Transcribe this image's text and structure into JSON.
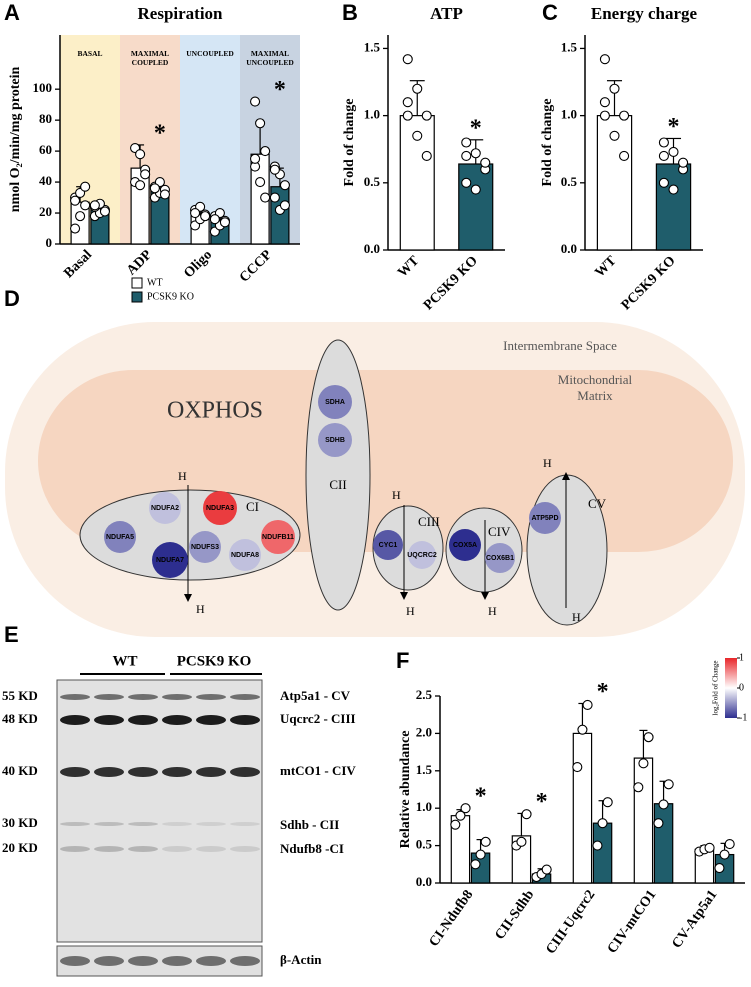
{
  "panel_labels": [
    "A",
    "B",
    "C",
    "D",
    "E",
    "F"
  ],
  "chart_data": [
    {
      "type": "bar",
      "title": "Respiration",
      "y_label": "nmol O₂/min/mg protein",
      "categories": [
        "Basal",
        "ADP",
        "Oligo",
        "CCCP"
      ],
      "regions": [
        {
          "label": "BASAL",
          "category": "Basal",
          "color": "#fcefc8"
        },
        {
          "label": "MAXIMAL COUPLED",
          "category": "ADP",
          "color": "#f7dbc9"
        },
        {
          "label": "UNCOUPLED",
          "category": "Oligo",
          "color": "#d5e6f5"
        },
        {
          "label": "MAXIMAL UNCOUPLED",
          "category": "CCCP",
          "color": "#c8d3e1"
        }
      ],
      "series": [
        {
          "name": "WT",
          "color": "#ffffff",
          "values": [
            27,
            49,
            19,
            58
          ],
          "errors": [
            10,
            15,
            5,
            21
          ],
          "points": [
            [
              10,
              18,
              25,
              30,
              33,
              37,
              28
            ],
            [
              62,
              58,
              48,
              40,
              38,
              45
            ],
            [
              12,
              16,
              19,
              22,
              24,
              18,
              20
            ],
            [
              92,
              78,
              60,
              50,
              40,
              30,
              55
            ]
          ]
        },
        {
          "name": "PCSK9 KO",
          "color": "#1f5d6b",
          "values": [
            22,
            35,
            15,
            37
          ],
          "errors": [
            5,
            5,
            5,
            12
          ],
          "points": [
            [
              18,
              20,
              22,
              24,
              26,
              21,
              25
            ],
            [
              30,
              33,
              35,
              37,
              40,
              32,
              36
            ],
            [
              8,
              12,
              15,
              18,
              20,
              14,
              16
            ],
            [
              50,
              45,
              38,
              30,
              22,
              25,
              48
            ]
          ]
        }
      ],
      "annotations": [
        {
          "text": "*",
          "x": "ADP"
        },
        {
          "text": "*",
          "x": "CCCP"
        }
      ],
      "ylim": [
        0,
        135
      ],
      "yticks": [
        0,
        20,
        40,
        60,
        80,
        100
      ]
    },
    {
      "type": "bar",
      "title": "ATP",
      "y_label": "Fold of change",
      "categories": [
        "WT",
        "PCSK9 KO"
      ],
      "colors": [
        "#ffffff",
        "#1f5d6b"
      ],
      "values": [
        1.0,
        0.64
      ],
      "errors": [
        0.26,
        0.18
      ],
      "points": [
        [
          1.42,
          1.2,
          1.0,
          1.0,
          0.85,
          0.7,
          1.1
        ],
        [
          0.8,
          0.72,
          0.6,
          0.5,
          0.45,
          0.65,
          0.7
        ]
      ],
      "annotations": [
        {
          "text": "*",
          "x": "PCSK9 KO"
        }
      ],
      "ylim": [
        0,
        1.6
      ],
      "yticks": [
        {
          "value": 0,
          "label": "0.0"
        },
        0.5,
        {
          "value": 1,
          "label": "1.0"
        },
        1.5
      ]
    },
    {
      "type": "bar",
      "title": "Energy charge",
      "y_label": "Fold of change",
      "categories": [
        "WT",
        "PCSK9 KO"
      ],
      "colors": [
        "#ffffff",
        "#1f5d6b"
      ],
      "values": [
        1.0,
        0.64
      ],
      "errors": [
        0.26,
        0.19
      ],
      "points": [
        [
          1.42,
          1.2,
          1.0,
          1.0,
          0.85,
          0.7,
          1.1
        ],
        [
          0.8,
          0.73,
          0.6,
          0.5,
          0.45,
          0.65,
          0.7
        ]
      ],
      "annotations": [
        {
          "text": "*",
          "x": "PCSK9 KO"
        }
      ],
      "ylim": [
        0,
        1.6
      ],
      "yticks": [
        {
          "value": 0,
          "label": "0.0"
        },
        0.5,
        {
          "value": 1,
          "label": "1.0"
        },
        1.5
      ]
    },
    {
      "type": "bar",
      "y_label": "Relative abundance",
      "categories": [
        "CI-Ndufb8",
        "CII-Sdhb",
        "CIII-Uqcrc2",
        "CIV-mtCO1",
        "CV-Atp5a1"
      ],
      "series": [
        {
          "color": "#ffffff",
          "values": [
            0.9,
            0.63,
            2.0,
            1.67,
            0.45
          ],
          "errors": [
            0.08,
            0.3,
            0.4,
            0.37,
            0.05
          ],
          "points": [
            [
              0.78,
              0.9,
              1.0
            ],
            [
              0.5,
              0.55,
              0.92
            ],
            [
              1.55,
              2.05,
              2.38
            ],
            [
              1.28,
              1.6,
              1.95
            ],
            [
              0.42,
              0.45,
              0.47
            ]
          ]
        },
        {
          "color": "#1f5d6b",
          "values": [
            0.4,
            0.12,
            0.8,
            1.06,
            0.38
          ],
          "errors": [
            0.18,
            0.07,
            0.3,
            0.3,
            0.15
          ],
          "points": [
            [
              0.25,
              0.38,
              0.55
            ],
            [
              0.08,
              0.12,
              0.18
            ],
            [
              0.5,
              0.8,
              1.08
            ],
            [
              0.8,
              1.05,
              1.32
            ],
            [
              0.2,
              0.38,
              0.52
            ]
          ]
        }
      ],
      "annotations": [
        {
          "text": "*",
          "x": "CI-Ndufb8"
        },
        {
          "text": "*",
          "x": "CII-Sdhb"
        },
        {
          "text": "*",
          "x": "CIII-Uqcrc2"
        }
      ],
      "ylim": [
        0,
        2.5
      ],
      "yticks": [
        {
          "value": 0,
          "label": "0.0"
        },
        0.5,
        {
          "value": 1,
          "label": "1.0"
        },
        1.5,
        {
          "value": 2,
          "label": "2.0"
        },
        2.5
      ]
    }
  ],
  "diagram": {
    "space_label": "Intermembrane Space",
    "matrix_label": "Mitochondrial Matrix",
    "title": "OXPHOS",
    "proton": "H",
    "complexes": [
      "CI",
      "CII",
      "CIII",
      "CIV",
      "CV"
    ],
    "nodes": [
      {
        "label": "NDUFA2",
        "value": -0.3
      },
      {
        "label": "NDUFA3",
        "value": 0.9
      },
      {
        "label": "NDUFA5",
        "value": -0.6
      },
      {
        "label": "NDUFS3",
        "value": -0.5
      },
      {
        "label": "NDUFA7",
        "value": -1.0
      },
      {
        "label": "NDUFA8",
        "value": -0.3
      },
      {
        "label": "NDUFB11",
        "value": 0.7
      },
      {
        "label": "SDHA",
        "value": -0.6
      },
      {
        "label": "SDHB",
        "value": -0.5
      },
      {
        "label": "CYC1",
        "value": -0.8
      },
      {
        "label": "UQCRC2",
        "value": -0.3
      },
      {
        "label": "COX5A",
        "value": -1.0
      },
      {
        "label": "COX6B1",
        "value": -0.5
      },
      {
        "label": "ATP5PD",
        "value": -0.6
      }
    ],
    "color_scale": {
      "lim": [
        -1,
        1
      ],
      "ticks": [
        1,
        0,
        -1
      ],
      "colors": [
        "#2d2e8f",
        "#ffffff",
        "#e8262a"
      ],
      "label": "log₂Fold of Change"
    }
  },
  "blot": {
    "groups": [
      "WT",
      "PCSK9 KO"
    ],
    "markers": [
      "55 KD",
      "48 KD",
      "40 KD",
      "30 KD",
      "20 KD"
    ],
    "bands": [
      "Atp5a1 - CV",
      "Uqcrc2 - CIII",
      "mtCO1 - CIV",
      "Sdhb - CII",
      "Ndufb8 -CI",
      "β-Actin"
    ]
  }
}
